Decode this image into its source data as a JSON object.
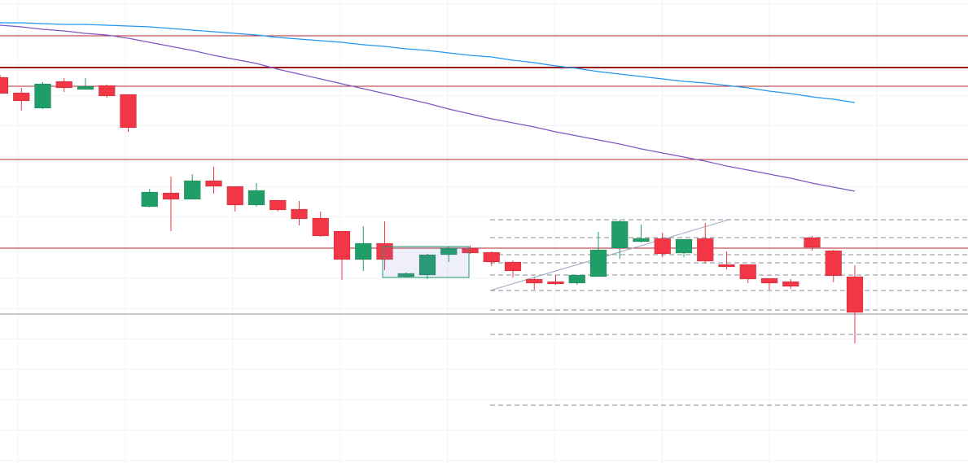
{
  "chart_data": {
    "type": "candlestick",
    "up_color": "#1f9e68",
    "down_color": "#f23645",
    "ylim": [
      0,
      569
    ],
    "open": [
      474,
      455,
      436,
      469,
      459,
      464,
      453,
      315,
      332,
      324,
      347,
      340,
      317,
      323,
      312,
      301,
      285,
      250,
      270,
      229,
      231,
      256,
      264,
      259,
      247,
      226,
      223,
      221,
      229,
      264,
      272,
      276,
      258,
      276,
      244,
      244,
      227,
      223,
      277,
      261,
      229
    ],
    "high": [
      477,
      461,
      468,
      473,
      473,
      465,
      453,
      337,
      352,
      355,
      364,
      340,
      344,
      323,
      322,
      309,
      285,
      291,
      297,
      234,
      257,
      266,
      267,
      260,
      249,
      228,
      231,
      231,
      284,
      299,
      293,
      283,
      275,
      295,
      260,
      244,
      227,
      226,
      279,
      262,
      243
    ],
    "low": [
      454,
      433,
      435,
      456,
      459,
      449,
      407,
      314,
      285,
      324,
      331,
      309,
      315,
      309,
      292,
      278,
      225,
      236,
      237,
      228,
      226,
      247,
      257,
      242,
      228,
      213,
      219,
      219,
      229,
      251,
      271,
      253,
      253,
      245,
      238,
      221,
      213,
      214,
      261,
      222,
      147
    ],
    "close": [
      454,
      445,
      466,
      461,
      463,
      451,
      412,
      333,
      324,
      347,
      340,
      317,
      335,
      311,
      300,
      279,
      250,
      270,
      250,
      233,
      256,
      264,
      258,
      247,
      236,
      221,
      220,
      231,
      262,
      297,
      276,
      257,
      275,
      248,
      241,
      226,
      221,
      217,
      265,
      230,
      185
    ],
    "series": [
      {
        "color": "#2196f3",
        "values": [
          541,
          541,
          540,
          539,
          539,
          538,
          537,
          536,
          534,
          532,
          530,
          528,
          526,
          523,
          521,
          519,
          517,
          514,
          512,
          509,
          507,
          504,
          501,
          499,
          495,
          492,
          488,
          485,
          481,
          478,
          475,
          472,
          469,
          467,
          464,
          461,
          457,
          454,
          450,
          447,
          443
        ]
      },
      {
        "color": "#7e57c2",
        "values": [
          538,
          536,
          533,
          531,
          528,
          526,
          522,
          517,
          512,
          507,
          501,
          496,
          491,
          484,
          478,
          472,
          466,
          460,
          454,
          448,
          442,
          435,
          429,
          423,
          418,
          413,
          407,
          402,
          397,
          392,
          386,
          381,
          376,
          371,
          365,
          360,
          355,
          350,
          344,
          339,
          334
        ]
      }
    ]
  }
}
